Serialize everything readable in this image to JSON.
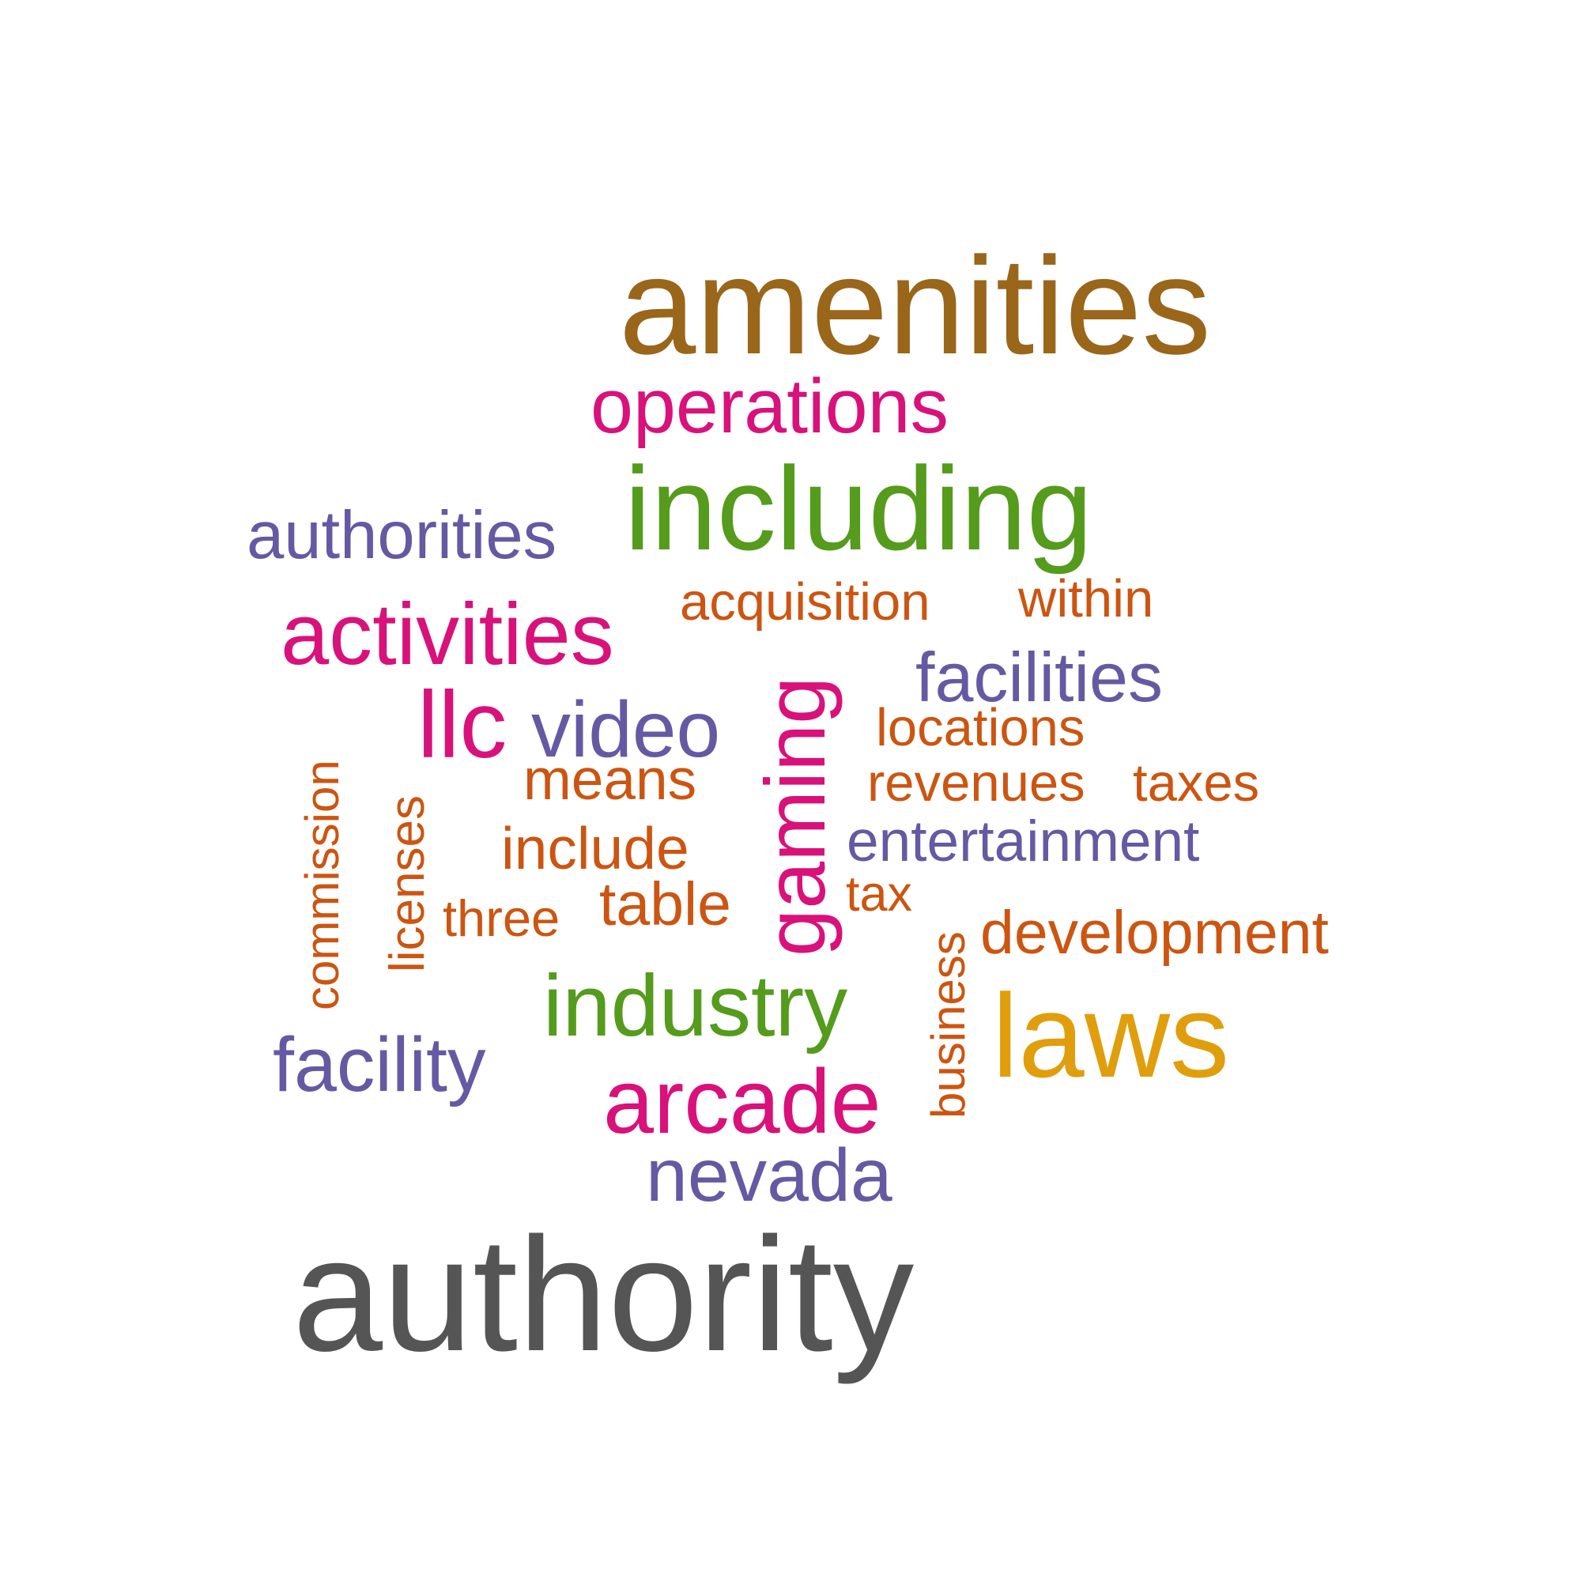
{
  "colors": {
    "amenities": "#99661a",
    "operations": "#d9117a",
    "including": "#559b1c",
    "authorities": "#6659a3",
    "acquisition": "#cc5511",
    "within": "#cc5511",
    "activities": "#d9117a",
    "facilities": "#6659a3",
    "llc": "#d9117a",
    "video": "#6659a3",
    "gaming": "#d9117a",
    "locations": "#cc5511",
    "means": "#cc5511",
    "revenues": "#cc5511",
    "taxes": "#cc5511",
    "include": "#cc5511",
    "entertainment": "#6659a3",
    "tax": "#cc5511",
    "commission": "#cc5511",
    "licenses": "#cc5511",
    "three": "#cc5511",
    "table": "#cc5511",
    "business": "#cc5511",
    "development": "#cc5511",
    "industry": "#559b1c",
    "laws": "#e09e0d",
    "facility": "#6659a3",
    "arcade": "#d9117a",
    "nevada": "#6659a3",
    "authority": "#555555"
  },
  "words": {
    "amenities": "amenities",
    "operations": "operations",
    "including": "including",
    "authorities": "authorities",
    "acquisition": "acquisition",
    "within": "within",
    "activities": "activities",
    "facilities": "facilities",
    "llc": "llc",
    "video": "video",
    "gaming": "gaming",
    "locations": "locations",
    "means": "means",
    "revenues": "revenues",
    "taxes": "taxes",
    "include": "include",
    "entertainment": "entertainment",
    "tax": "tax",
    "commission": "commission",
    "licenses": "licenses",
    "three": "three",
    "table": "table",
    "business": "business",
    "development": "development",
    "industry": "industry",
    "laws": "laws",
    "facility": "facility",
    "arcade": "arcade",
    "nevada": "nevada",
    "authority": "authority"
  }
}
